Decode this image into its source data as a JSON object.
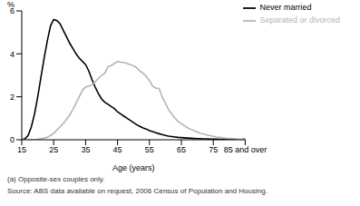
{
  "chart_data": {
    "type": "line",
    "y_label": "%",
    "x_label": "Age (years)",
    "footnote": "(a) Opposite-sex couples only.",
    "source": "Source: ABS data available on request, 2006 Census of Population and Housing.",
    "x": [
      15,
      16,
      17,
      18,
      19,
      20,
      21,
      22,
      23,
      24,
      25,
      26,
      27,
      28,
      29,
      30,
      31,
      32,
      33,
      34,
      35,
      36,
      37,
      38,
      39,
      40,
      41,
      42,
      43,
      44,
      45,
      46,
      47,
      48,
      49,
      50,
      51,
      52,
      53,
      54,
      55,
      56,
      57,
      58,
      59,
      60,
      61,
      62,
      63,
      64,
      65,
      66,
      67,
      68,
      69,
      70,
      71,
      72,
      73,
      74,
      75,
      76,
      77,
      78,
      79,
      80,
      81,
      82,
      83,
      84,
      85
    ],
    "series": [
      {
        "name": "Never married",
        "color": "#000000",
        "values": [
          0,
          0.05,
          0.2,
          0.6,
          1.2,
          2.0,
          2.9,
          3.8,
          4.6,
          5.3,
          5.6,
          5.55,
          5.4,
          5.1,
          4.8,
          4.5,
          4.25,
          4.0,
          3.8,
          3.65,
          3.5,
          3.2,
          2.8,
          2.45,
          2.15,
          1.9,
          1.75,
          1.65,
          1.55,
          1.45,
          1.3,
          1.2,
          1.1,
          1.0,
          0.9,
          0.8,
          0.7,
          0.62,
          0.55,
          0.5,
          0.42,
          0.38,
          0.33,
          0.28,
          0.24,
          0.2,
          0.17,
          0.15,
          0.13,
          0.11,
          0.1,
          0.09,
          0.08,
          0.07,
          0.06,
          0.05,
          0.05,
          0.04,
          0.04,
          0.03,
          0.03,
          0.03,
          0.02,
          0.02,
          0.02,
          0.02,
          0.01,
          0.01,
          0.01,
          0.01,
          0.05
        ]
      },
      {
        "name": "Separated or divorced",
        "color": "#b4b4b4",
        "values": [
          0,
          0,
          0,
          0,
          0,
          0.02,
          0.05,
          0.08,
          0.12,
          0.2,
          0.3,
          0.45,
          0.6,
          0.75,
          0.95,
          1.15,
          1.4,
          1.7,
          2.0,
          2.3,
          2.45,
          2.5,
          2.55,
          2.7,
          2.85,
          3.0,
          3.1,
          3.4,
          3.45,
          3.55,
          3.65,
          3.6,
          3.6,
          3.55,
          3.5,
          3.45,
          3.35,
          3.2,
          3.1,
          2.95,
          2.75,
          2.5,
          2.4,
          2.4,
          2.0,
          1.7,
          1.4,
          1.2,
          1.0,
          0.85,
          0.75,
          0.65,
          0.55,
          0.48,
          0.42,
          0.36,
          0.3,
          0.26,
          0.22,
          0.19,
          0.16,
          0.13,
          0.11,
          0.09,
          0.07,
          0.06,
          0.05,
          0.04,
          0.03,
          0.02,
          0.05
        ]
      }
    ],
    "xlim": [
      15,
      85
    ],
    "xticks": [
      15,
      25,
      35,
      45,
      55,
      65,
      75,
      {
        "value": 85,
        "label": "85 and over"
      }
    ],
    "ylim": [
      0,
      6
    ],
    "yticks": [
      0,
      2,
      4,
      6
    ],
    "grid": false,
    "legend": "top-right"
  }
}
